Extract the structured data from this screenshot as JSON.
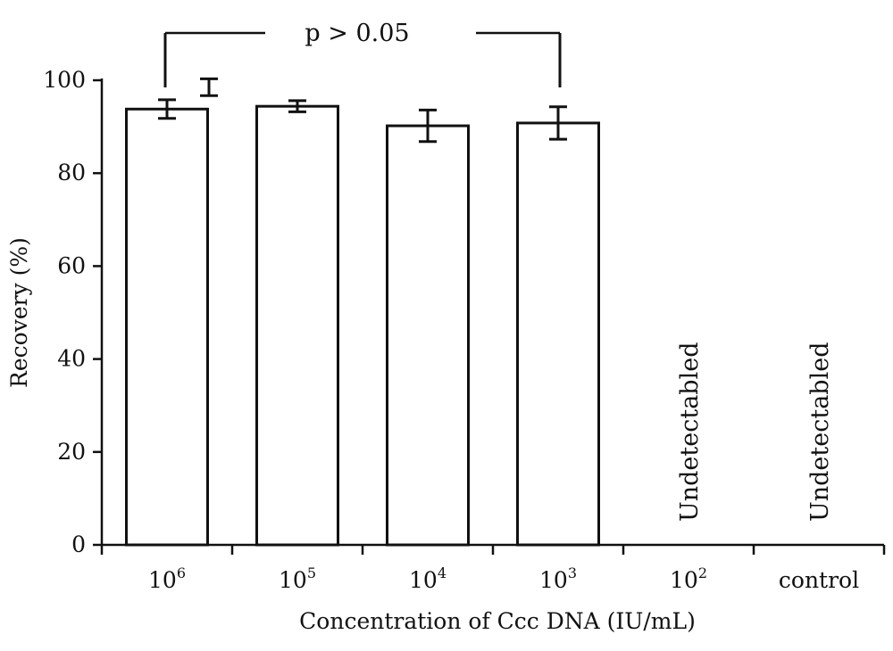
{
  "chart_data": {
    "type": "bar",
    "title": "",
    "xlabel": "Concentration of Ccc DNA (IU/mL)",
    "ylabel": "Recovery (%)",
    "ylim": [
      0,
      100
    ],
    "yticks": [
      0,
      20,
      40,
      60,
      80,
      100
    ],
    "grid": false,
    "legend": "none",
    "categories": [
      {
        "base": "10",
        "exp": "6"
      },
      {
        "base": "10",
        "exp": "5"
      },
      {
        "base": "10",
        "exp": "4"
      },
      {
        "base": "10",
        "exp": "3"
      },
      {
        "base": "10",
        "exp": "2"
      },
      {
        "base": "control",
        "exp": ""
      }
    ],
    "values": [
      93.8,
      94.4,
      90.2,
      90.8,
      null,
      null
    ],
    "errors": [
      2.0,
      1.2,
      3.4,
      3.5,
      null,
      null
    ],
    "bar_labels": [
      "",
      "",
      "",
      "",
      "Undetectabled",
      "Undetectabled"
    ],
    "extra_marker": {
      "category_index": 0,
      "value": 98.5,
      "error": 1.8
    },
    "significance": {
      "label": "p > 0.05",
      "from_index": 0,
      "to_index": 3
    },
    "colors": {
      "bar_fill": "#ffffff",
      "stroke": "#111111"
    }
  }
}
